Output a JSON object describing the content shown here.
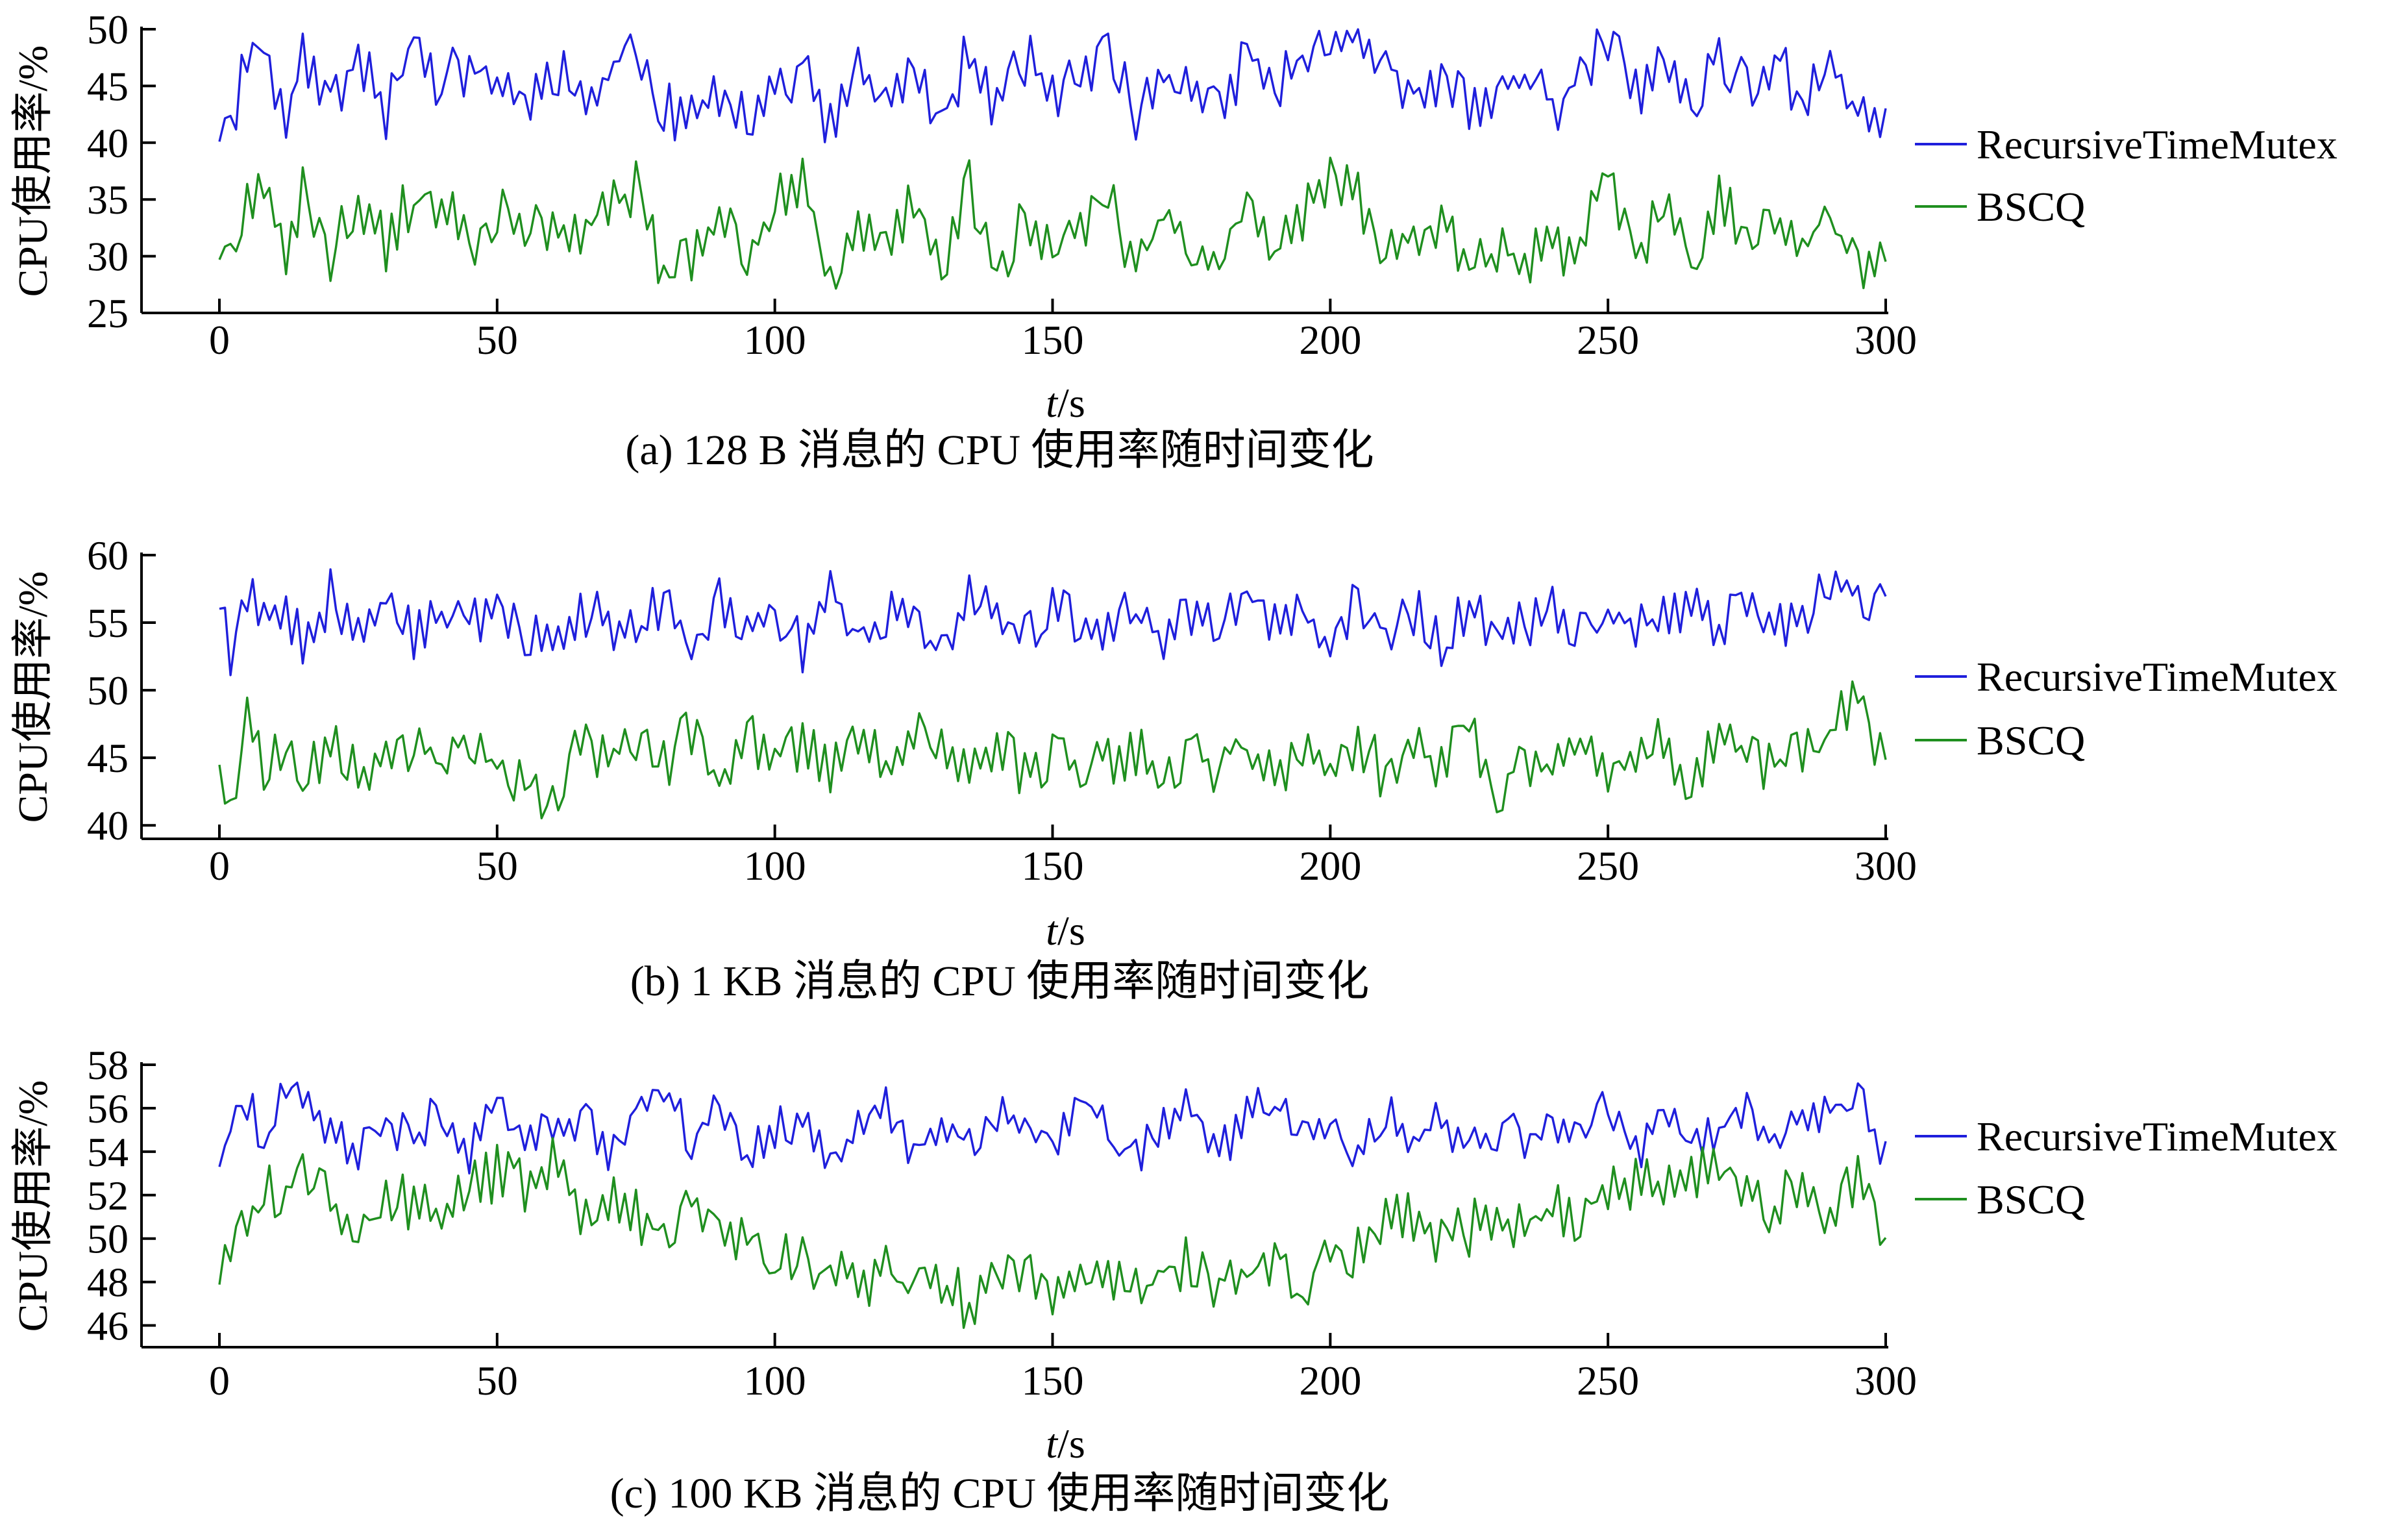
{
  "figure": {
    "x_tick_labels": [
      "0",
      "50",
      "100",
      "150",
      "200",
      "250",
      "300"
    ]
  },
  "chart_data": [
    {
      "type": "line",
      "caption": "(a) 128 B 消息的 CPU 使用率随时间变化",
      "xlabel_italic": "t",
      "xlabel_unit": "/s",
      "ylabel": "CPU使用率/%",
      "xlim": [
        0,
        300
      ],
      "ylim": [
        25,
        50
      ],
      "yticks": [
        25,
        30,
        35,
        40,
        45,
        50
      ],
      "xticks": [
        0,
        50,
        100,
        150,
        200,
        250,
        300
      ],
      "legend_position": "right",
      "series": [
        {
          "name": "RecursiveTimeMutex",
          "color": "#1f1fdc",
          "mean": 45,
          "amp": 3.6,
          "min": 40,
          "max": 50,
          "seed": 11,
          "x": [
            0,
            2,
            5,
            8,
            12,
            15,
            20,
            25,
            30,
            35,
            40,
            45,
            50,
            55,
            60,
            65,
            70,
            75,
            80,
            85,
            90,
            95,
            100,
            105,
            110,
            115,
            120,
            125,
            130,
            135,
            140,
            145,
            150,
            155,
            160,
            165,
            170,
            175,
            180,
            185,
            190,
            195,
            200,
            205,
            210,
            215,
            220,
            225,
            230,
            235,
            240,
            245,
            250,
            255,
            260,
            265,
            270,
            275,
            280,
            285,
            290,
            295,
            300
          ],
          "y": [
            41.5,
            41.2,
            47.8,
            48.5,
            41.5,
            48.5,
            42.5,
            48.0,
            43.0,
            49.5,
            45.0,
            47.0,
            45.5,
            43.5,
            47.0,
            44.0,
            46.0,
            49.0,
            43.0,
            41.5,
            45.0,
            42.0,
            45.5,
            46.5,
            41.0,
            46.0,
            43.5,
            48.0,
            41.5,
            48.0,
            43.0,
            47.5,
            44.0,
            46.0,
            48.5,
            42.5,
            46.0,
            45.0,
            42.0,
            48.5,
            44.0,
            47.5,
            48.5,
            49.0,
            47.5,
            44.5,
            46.0,
            42.5,
            44.0,
            46.5,
            43.0,
            46.0,
            49.5,
            44.0,
            47.0,
            42.0,
            48.5,
            44.0,
            47.5,
            43.5,
            48.0,
            42.5,
            42.0
          ]
        },
        {
          "name": "BSCQ",
          "color": "#1f8f1f",
          "mean": 32.5,
          "amp": 3.4,
          "min": 26,
          "max": 39,
          "seed": 23,
          "x": [
            0,
            2,
            5,
            8,
            12,
            15,
            20,
            25,
            30,
            35,
            40,
            45,
            50,
            55,
            60,
            65,
            70,
            75,
            80,
            85,
            90,
            95,
            100,
            105,
            110,
            115,
            120,
            125,
            130,
            135,
            140,
            145,
            150,
            155,
            160,
            165,
            170,
            175,
            180,
            185,
            190,
            195,
            200,
            205,
            210,
            215,
            220,
            225,
            230,
            235,
            240,
            245,
            250,
            255,
            260,
            265,
            270,
            275,
            280,
            285,
            290,
            295,
            300
          ],
          "y": [
            31.0,
            30.0,
            35.0,
            36.5,
            29.5,
            36.0,
            30.0,
            35.0,
            31.0,
            35.5,
            34.5,
            31.0,
            34.0,
            31.5,
            33.5,
            32.0,
            34.0,
            36.0,
            28.5,
            30.0,
            32.5,
            30.5,
            34.5,
            37.0,
            28.0,
            32.0,
            30.0,
            35.0,
            29.0,
            36.5,
            28.5,
            34.0,
            30.5,
            32.0,
            35.5,
            29.0,
            33.5,
            31.5,
            28.5,
            35.0,
            30.0,
            33.5,
            37.5,
            35.0,
            30.0,
            31.5,
            33.0,
            30.0,
            31.0,
            29.5,
            30.5,
            31.0,
            37.5,
            30.0,
            34.0,
            30.5,
            35.0,
            31.5,
            34.0,
            30.5,
            33.5,
            28.5,
            30.5
          ]
        }
      ]
    },
    {
      "type": "line",
      "caption": "(b) 1 KB 消息的 CPU 使用率随时间变化",
      "xlabel_italic": "t",
      "xlabel_unit": "/s",
      "ylabel": "CPU使用率/%",
      "xlim": [
        0,
        300
      ],
      "ylim": [
        39,
        60
      ],
      "yticks": [
        40,
        45,
        50,
        55,
        60
      ],
      "xticks": [
        0,
        50,
        100,
        150,
        200,
        250,
        300
      ],
      "legend_position": "right",
      "series": [
        {
          "name": "RecursiveTimeMutex",
          "color": "#1f1fdc",
          "mean": 55,
          "amp": 2.6,
          "min": 51,
          "max": 59,
          "seed": 37,
          "x": [
            0,
            2,
            5,
            8,
            12,
            15,
            20,
            25,
            30,
            35,
            40,
            45,
            50,
            55,
            60,
            65,
            70,
            75,
            80,
            85,
            90,
            95,
            100,
            105,
            110,
            115,
            120,
            125,
            130,
            135,
            140,
            145,
            150,
            155,
            160,
            165,
            170,
            175,
            180,
            185,
            190,
            195,
            200,
            205,
            210,
            215,
            220,
            225,
            230,
            235,
            240,
            245,
            250,
            255,
            260,
            265,
            270,
            275,
            280,
            285,
            290,
            295,
            300
          ],
          "y": [
            57.0,
            52.5,
            57.5,
            55.0,
            56.5,
            53.0,
            57.0,
            53.5,
            56.5,
            54.0,
            55.5,
            55.0,
            55.5,
            54.0,
            53.0,
            56.0,
            55.0,
            54.0,
            57.0,
            53.0,
            56.5,
            54.5,
            56.0,
            53.0,
            57.5,
            54.0,
            55.5,
            56.0,
            53.5,
            57.0,
            55.0,
            54.0,
            56.5,
            54.5,
            55.0,
            55.5,
            54.0,
            56.0,
            54.5,
            56.5,
            55.0,
            55.5,
            53.5,
            57.0,
            54.0,
            56.0,
            53.5,
            56.5,
            54.0,
            55.0,
            56.0,
            54.0,
            56.5,
            54.5,
            55.5,
            56.0,
            54.0,
            57.0,
            55.0,
            55.5,
            58.0,
            57.5,
            56.0
          ]
        },
        {
          "name": "BSCQ",
          "color": "#1f8f1f",
          "mean": 45,
          "amp": 2.8,
          "min": 40,
          "max": 51,
          "seed": 53,
          "x": [
            0,
            2,
            5,
            8,
            12,
            15,
            20,
            25,
            30,
            35,
            40,
            45,
            50,
            55,
            60,
            65,
            70,
            75,
            80,
            85,
            90,
            95,
            100,
            105,
            110,
            115,
            120,
            125,
            130,
            135,
            140,
            145,
            150,
            155,
            160,
            165,
            170,
            175,
            180,
            185,
            190,
            195,
            200,
            205,
            210,
            215,
            220,
            225,
            230,
            235,
            240,
            245,
            250,
            255,
            260,
            265,
            270,
            275,
            280,
            285,
            290,
            295,
            300
          ],
          "y": [
            45.5,
            41.0,
            48.0,
            44.0,
            46.5,
            42.5,
            47.0,
            43.5,
            46.0,
            45.0,
            45.5,
            46.0,
            44.5,
            43.0,
            41.5,
            46.5,
            45.0,
            46.0,
            44.5,
            47.0,
            43.5,
            46.5,
            44.0,
            46.0,
            43.5,
            47.0,
            44.5,
            46.5,
            45.0,
            44.0,
            46.5,
            43.5,
            45.5,
            44.5,
            45.0,
            45.5,
            44.0,
            46.0,
            43.5,
            47.0,
            43.0,
            45.5,
            44.0,
            46.5,
            43.5,
            46.0,
            44.0,
            47.0,
            42.5,
            45.0,
            44.0,
            46.0,
            43.5,
            45.5,
            46.0,
            43.0,
            47.5,
            45.0,
            44.5,
            46.0,
            47.0,
            49.5,
            44.5
          ]
        }
      ]
    },
    {
      "type": "line",
      "caption": "(c) 100 KB 消息的 CPU 使用率随时间变化",
      "xlabel_italic": "t",
      "xlabel_unit": "/s",
      "ylabel": "CPU使用率/%",
      "xlim": [
        0,
        300
      ],
      "ylim": [
        45,
        58
      ],
      "yticks": [
        46,
        48,
        50,
        52,
        54,
        56,
        58
      ],
      "xticks": [
        0,
        50,
        100,
        150,
        200,
        250,
        300
      ],
      "legend_position": "right",
      "series": [
        {
          "name": "RecursiveTimeMutex",
          "color": "#1f1fdc",
          "mean": 55,
          "amp": 1.4,
          "min": 53,
          "max": 57.2,
          "seed": 71,
          "x": [
            0,
            2,
            5,
            8,
            12,
            15,
            20,
            25,
            30,
            35,
            40,
            45,
            50,
            55,
            60,
            65,
            70,
            75,
            80,
            85,
            90,
            95,
            100,
            105,
            110,
            115,
            120,
            125,
            130,
            135,
            140,
            145,
            150,
            155,
            160,
            165,
            170,
            175,
            180,
            185,
            190,
            195,
            200,
            205,
            210,
            215,
            220,
            225,
            230,
            235,
            240,
            245,
            250,
            255,
            260,
            265,
            270,
            275,
            280,
            285,
            290,
            295,
            300
          ],
          "y": [
            53.8,
            54.5,
            56.5,
            54.0,
            56.8,
            57.0,
            55.0,
            53.8,
            55.5,
            54.5,
            56.0,
            54.0,
            56.5,
            54.5,
            55.0,
            55.5,
            54.0,
            56.0,
            57.0,
            54.5,
            56.5,
            54.0,
            55.0,
            55.5,
            53.5,
            55.0,
            56.0,
            54.0,
            55.5,
            54.5,
            56.0,
            55.0,
            54.0,
            56.5,
            55.0,
            53.8,
            55.5,
            56.0,
            54.0,
            55.5,
            56.5,
            54.5,
            55.0,
            54.0,
            56.0,
            54.5,
            55.5,
            54.0,
            55.0,
            54.5,
            55.0,
            54.5,
            56.5,
            54.0,
            55.5,
            54.5,
            55.0,
            56.0,
            54.5,
            55.5,
            56.0,
            56.5,
            53.5
          ]
        },
        {
          "name": "BSCQ",
          "color": "#1f8f1f",
          "mean": 50,
          "amp": 1.8,
          "min": 45.2,
          "max": 54.8,
          "seed": 89,
          "x": [
            0,
            2,
            5,
            8,
            12,
            15,
            20,
            25,
            30,
            35,
            40,
            45,
            50,
            55,
            60,
            65,
            70,
            75,
            80,
            85,
            90,
            95,
            100,
            105,
            110,
            115,
            120,
            125,
            130,
            135,
            140,
            145,
            150,
            155,
            160,
            165,
            170,
            175,
            180,
            185,
            190,
            195,
            200,
            205,
            210,
            215,
            220,
            225,
            230,
            235,
            240,
            245,
            250,
            255,
            260,
            265,
            270,
            275,
            280,
            285,
            290,
            295,
            300
          ],
          "y": [
            48.5,
            49.5,
            51.0,
            52.0,
            52.5,
            53.5,
            51.5,
            50.5,
            52.0,
            51.5,
            51.0,
            52.5,
            53.0,
            52.5,
            53.5,
            51.5,
            52.0,
            51.0,
            50.5,
            51.5,
            50.5,
            50.0,
            49.5,
            49.0,
            48.5,
            48.0,
            48.5,
            47.5,
            48.0,
            47.0,
            48.0,
            48.5,
            47.0,
            48.5,
            48.0,
            47.5,
            48.5,
            49.0,
            48.0,
            48.5,
            49.0,
            48.0,
            49.5,
            49.5,
            50.5,
            51.0,
            50.0,
            50.5,
            51.0,
            50.5,
            51.5,
            51.0,
            52.0,
            52.5,
            52.0,
            53.0,
            53.5,
            52.0,
            51.5,
            52.5,
            51.0,
            53.0,
            49.0
          ]
        }
      ]
    }
  ]
}
